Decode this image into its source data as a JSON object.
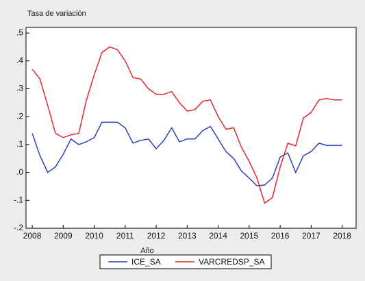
{
  "chart_data": {
    "type": "line",
    "title": "Tasa de variación",
    "x_label": "Año",
    "x": [
      2008,
      2008.25,
      2008.5,
      2008.75,
      2009,
      2009.25,
      2009.5,
      2009.75,
      2010,
      2010.25,
      2010.5,
      2010.75,
      2011,
      2011.25,
      2011.5,
      2011.75,
      2012,
      2012.25,
      2012.5,
      2012.75,
      2013,
      2013.25,
      2013.5,
      2013.75,
      2014,
      2014.25,
      2014.5,
      2014.75,
      2015,
      2015.25,
      2015.5,
      2015.75,
      2016,
      2016.25,
      2016.5,
      2016.75,
      2017,
      2017.25,
      2017.5,
      2017.75,
      2018
    ],
    "series": [
      {
        "name": "ICE_SA",
        "color": "#2b3fbf",
        "values": [
          0.14,
          0.06,
          0.0,
          0.02,
          0.065,
          0.12,
          0.1,
          0.11,
          0.125,
          0.18,
          0.18,
          0.18,
          0.16,
          0.105,
          0.115,
          0.12,
          0.085,
          0.115,
          0.16,
          0.11,
          0.12,
          0.12,
          0.15,
          0.165,
          0.12,
          0.075,
          0.05,
          0.005,
          -0.02,
          -0.048,
          -0.045,
          -0.02,
          0.055,
          0.07,
          0.0,
          0.06,
          0.075,
          0.105,
          0.097,
          0.097,
          0.097
        ]
      },
      {
        "name": "VARCREDSP_SA",
        "color": "#e8262a",
        "values": [
          0.37,
          0.335,
          0.24,
          0.14,
          0.125,
          0.135,
          0.14,
          0.26,
          0.35,
          0.43,
          0.45,
          0.44,
          0.4,
          0.34,
          0.335,
          0.3,
          0.28,
          0.28,
          0.29,
          0.25,
          0.22,
          0.225,
          0.255,
          0.26,
          0.2,
          0.155,
          0.16,
          0.09,
          0.04,
          -0.02,
          -0.11,
          -0.09,
          0.02,
          0.105,
          0.095,
          0.195,
          0.215,
          0.26,
          0.265,
          0.26,
          0.26
        ]
      }
    ],
    "xlim": [
      2007.8,
      2018.45
    ],
    "xticks": [
      2008,
      2009,
      2010,
      2011,
      2012,
      2013,
      2014,
      2015,
      2016,
      2017,
      2018
    ],
    "ylim": [
      -0.2,
      0.52
    ],
    "yticks": [
      {
        "value": -0.2,
        "label": "-.2"
      },
      {
        "value": -0.1,
        "label": "-.1"
      },
      {
        "value": 0,
        "label": ".0"
      },
      {
        "value": 0.1,
        "label": ".1"
      },
      {
        "value": 0.2,
        "label": ".2"
      },
      {
        "value": 0.3,
        "label": ".3"
      },
      {
        "value": 0.4,
        "label": ".4"
      },
      {
        "value": 0.5,
        "label": ".5"
      }
    ],
    "legend": "bottom"
  }
}
